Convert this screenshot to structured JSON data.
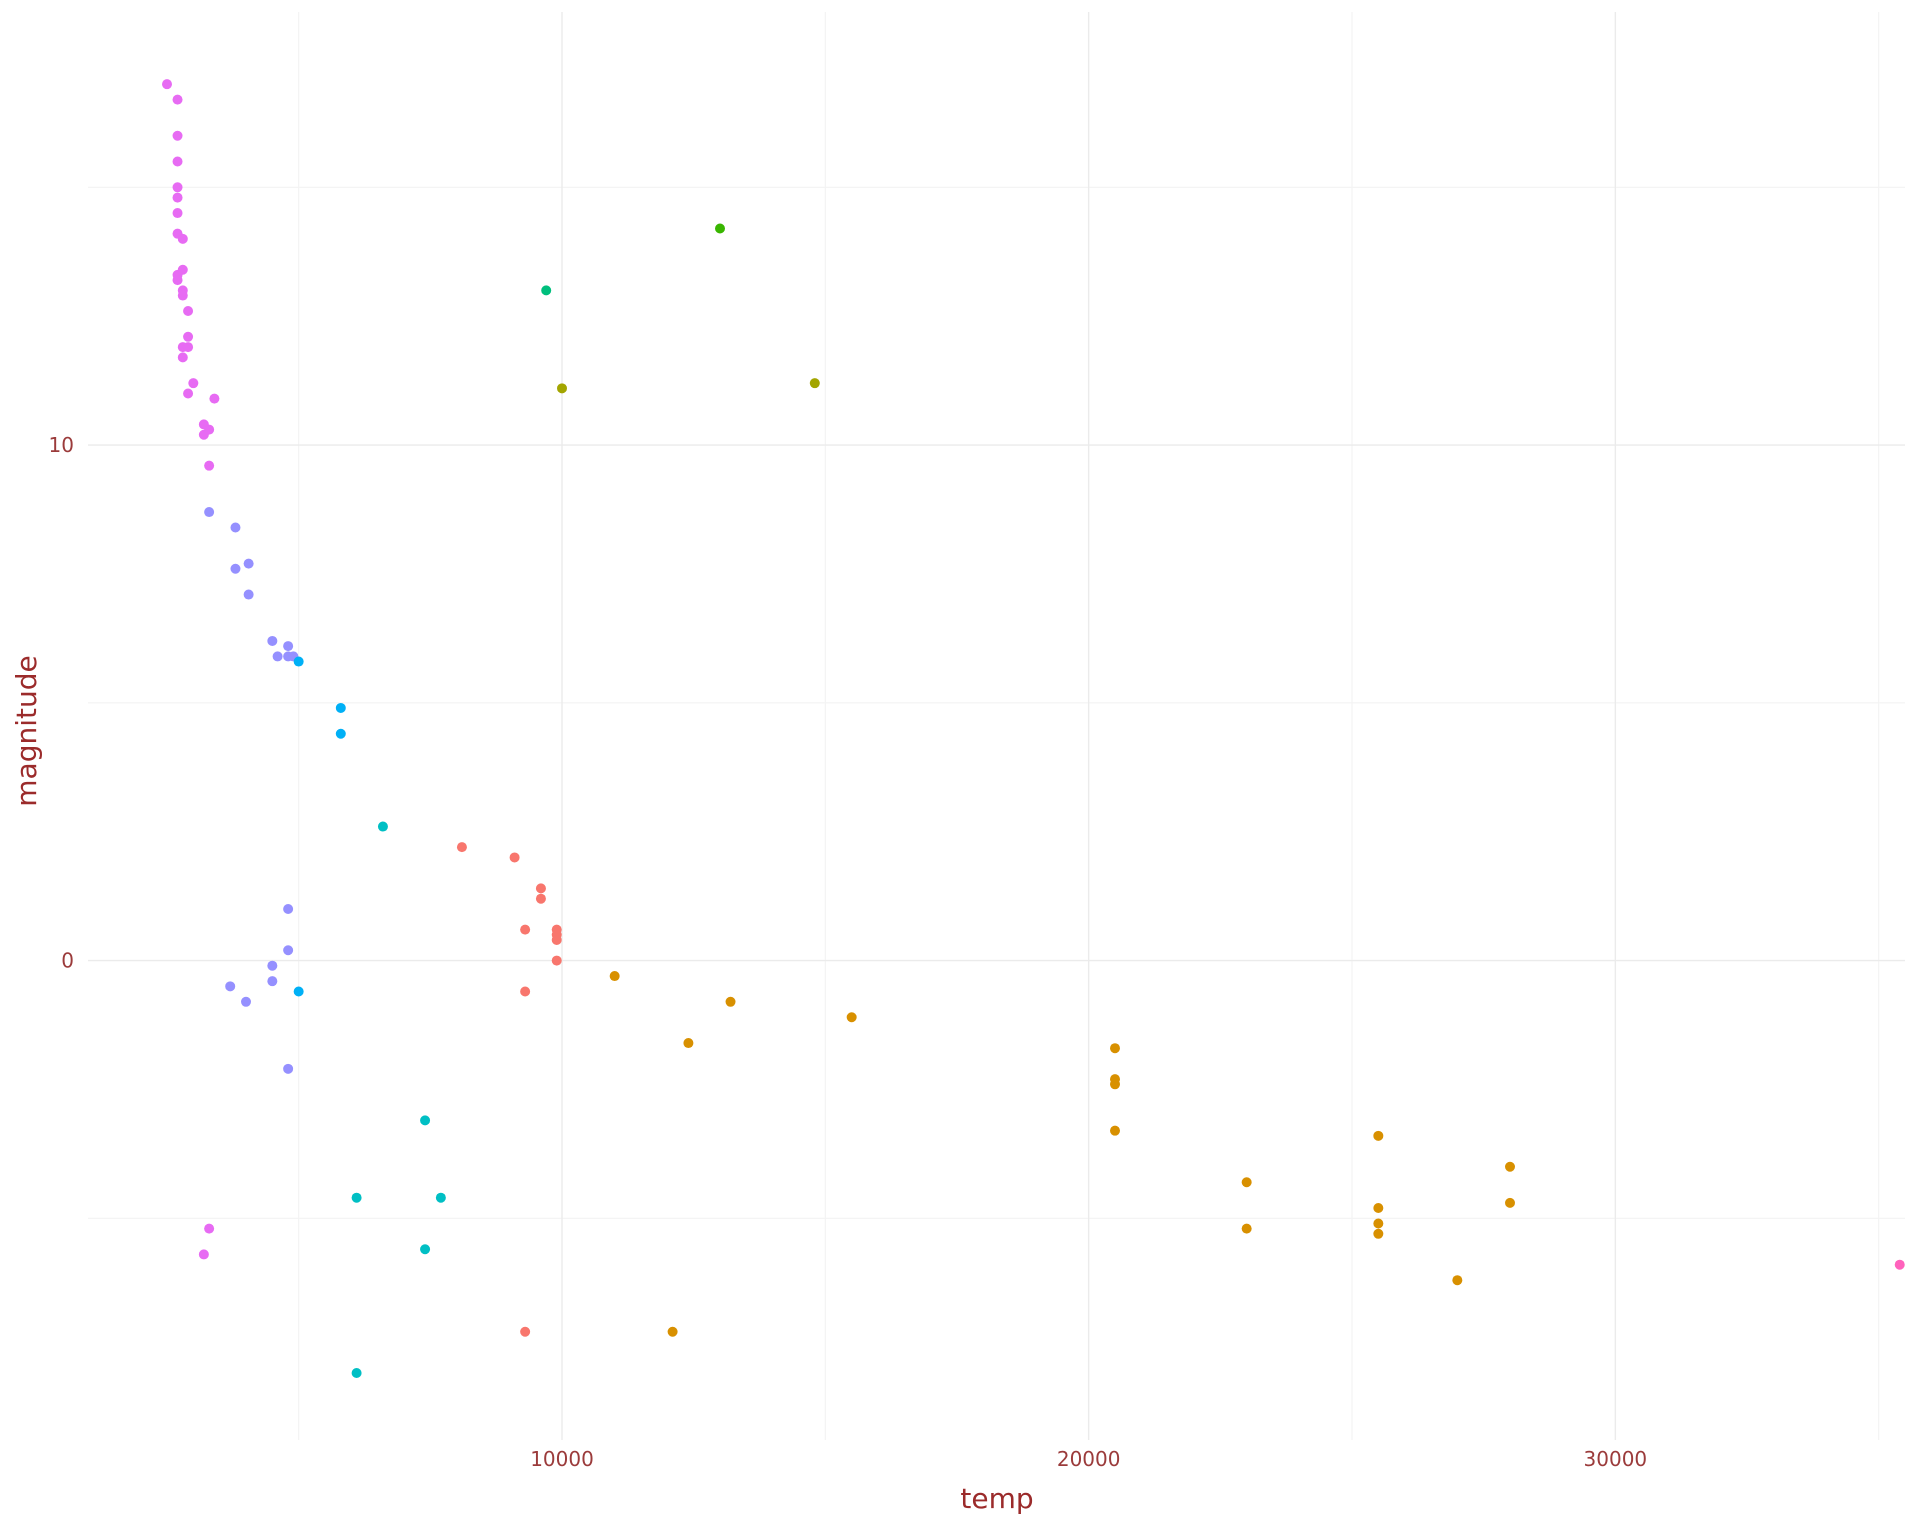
{
  "chart_data": {
    "type": "scatter",
    "xlabel": "temp",
    "ylabel": "magnitude",
    "xlim": [
      1000,
      35500
    ],
    "ylim": [
      -9.3,
      18.4
    ],
    "x_ticks": [
      10000,
      20000,
      30000
    ],
    "x_tick_labels": [
      "10000",
      "20000",
      "30000"
    ],
    "x_minor_ticks": [
      5000,
      15000,
      25000,
      35000
    ],
    "y_ticks": [
      0,
      10
    ],
    "y_tick_labels": [
      "0",
      "10"
    ],
    "y_minor_ticks": [
      -5,
      5,
      15
    ],
    "grid": true,
    "legend": "none",
    "groups": [
      {
        "color": "#E76BF3",
        "points": [
          [
            2500,
            17
          ],
          [
            2700,
            16.7
          ],
          [
            2700,
            16
          ],
          [
            2700,
            15.5
          ],
          [
            2700,
            15
          ],
          [
            2700,
            14.8
          ],
          [
            2700,
            14.5
          ],
          [
            2700,
            14.1
          ],
          [
            2800,
            14
          ],
          [
            2700,
            13.3
          ],
          [
            2800,
            13.4
          ],
          [
            2700,
            13.2
          ],
          [
            2800,
            13
          ],
          [
            2800,
            12.9
          ],
          [
            2900,
            12.6
          ],
          [
            2800,
            11.9
          ],
          [
            2900,
            12.1
          ],
          [
            2900,
            11.9
          ],
          [
            2800,
            11.7
          ],
          [
            3000,
            11.2
          ],
          [
            2900,
            11
          ],
          [
            3400,
            10.9
          ],
          [
            3200,
            10.4
          ],
          [
            3200,
            10.2
          ],
          [
            3300,
            10.3
          ],
          [
            3300,
            9.6
          ],
          [
            3300,
            -5.2
          ],
          [
            3200,
            -5.7
          ]
        ]
      },
      {
        "color": "#9590FF",
        "points": [
          [
            3300,
            8.7
          ],
          [
            3800,
            8.4
          ],
          [
            3800,
            7.6
          ],
          [
            4050,
            7.7
          ],
          [
            4050,
            7.1
          ],
          [
            4500,
            6.2
          ],
          [
            4600,
            5.9
          ],
          [
            4800,
            6.1
          ],
          [
            4800,
            5.9
          ],
          [
            4900,
            5.9
          ],
          [
            4800,
            1
          ],
          [
            4800,
            0.2
          ],
          [
            4500,
            -0.1
          ],
          [
            4500,
            -0.4
          ],
          [
            3700,
            -0.5
          ],
          [
            4000,
            -0.8
          ],
          [
            4800,
            -2.1
          ]
        ]
      },
      {
        "color": "#00B0F6",
        "points": [
          [
            5000,
            5.8
          ],
          [
            5800,
            4.9
          ],
          [
            5800,
            4.4
          ],
          [
            5000,
            -0.6
          ]
        ]
      },
      {
        "color": "#00BFC4",
        "points": [
          [
            6600,
            2.6
          ],
          [
            6100,
            -4.6
          ],
          [
            7400,
            -3.1
          ],
          [
            7700,
            -4.6
          ],
          [
            7400,
            -5.6
          ],
          [
            6100,
            -8
          ]
        ]
      },
      {
        "color": "#F8766D",
        "points": [
          [
            8100,
            2.2
          ],
          [
            9100,
            2
          ],
          [
            9600,
            1.4
          ],
          [
            9600,
            1.2
          ],
          [
            9300,
            0.6
          ],
          [
            9900,
            0.6
          ],
          [
            9900,
            0.5
          ],
          [
            9900,
            0.4
          ],
          [
            9900,
            0
          ],
          [
            9300,
            -0.6
          ],
          [
            9300,
            -7.2
          ]
        ]
      },
      {
        "color": "#D89000",
        "points": [
          [
            11000,
            -0.3
          ],
          [
            13200,
            -0.8
          ],
          [
            15500,
            -1.1
          ],
          [
            12400,
            -1.6
          ],
          [
            20500,
            -1.7
          ],
          [
            20500,
            -2.3
          ],
          [
            20500,
            -2.4
          ],
          [
            20500,
            -3.3
          ],
          [
            23000,
            -4.3
          ],
          [
            23000,
            -5.2
          ],
          [
            25500,
            -3.4
          ],
          [
            25500,
            -4.8
          ],
          [
            25500,
            -5.1
          ],
          [
            25500,
            -5.3
          ],
          [
            28000,
            -4
          ],
          [
            28000,
            -4.7
          ],
          [
            27000,
            -6.2
          ],
          [
            12100,
            -7.2
          ]
        ]
      },
      {
        "color": "#39B600",
        "points": [
          [
            13000,
            14.2
          ]
        ]
      },
      {
        "color": "#00BF7D",
        "points": [
          [
            9700,
            13
          ]
        ]
      },
      {
        "color": "#A3A500",
        "points": [
          [
            10000,
            11.1
          ],
          [
            14800,
            11.2
          ]
        ]
      },
      {
        "color": "#FF62BC",
        "points": [
          [
            35400,
            -5.9
          ]
        ]
      }
    ]
  }
}
